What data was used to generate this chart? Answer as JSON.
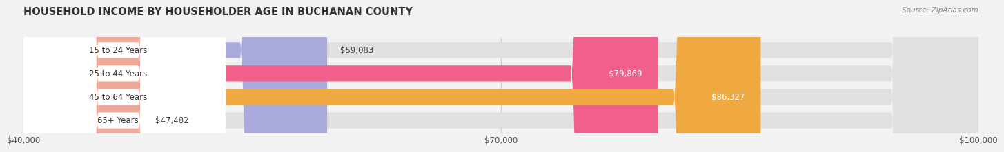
{
  "title": "HOUSEHOLD INCOME BY HOUSEHOLDER AGE IN BUCHANAN COUNTY",
  "source": "Source: ZipAtlas.com",
  "categories": [
    "15 to 24 Years",
    "25 to 44 Years",
    "45 to 64 Years",
    "65+ Years"
  ],
  "values": [
    59083,
    79869,
    86327,
    47482
  ],
  "bar_colors": [
    "#aaaadd",
    "#f0608a",
    "#f0a840",
    "#f0a898"
  ],
  "value_label_colors": [
    "#444444",
    "#ffffff",
    "#ffffff",
    "#444444"
  ],
  "x_min": 40000,
  "x_max": 100000,
  "x_ticks": [
    40000,
    70000,
    100000
  ],
  "x_tick_labels": [
    "$40,000",
    "$70,000",
    "$100,000"
  ],
  "background_color": "#f2f2f2",
  "bar_bg_color": "#e0e0e0",
  "title_fontsize": 10.5,
  "source_fontsize": 7.5,
  "tick_fontsize": 8.5,
  "label_fontsize": 8.5,
  "value_fontsize": 8.5
}
